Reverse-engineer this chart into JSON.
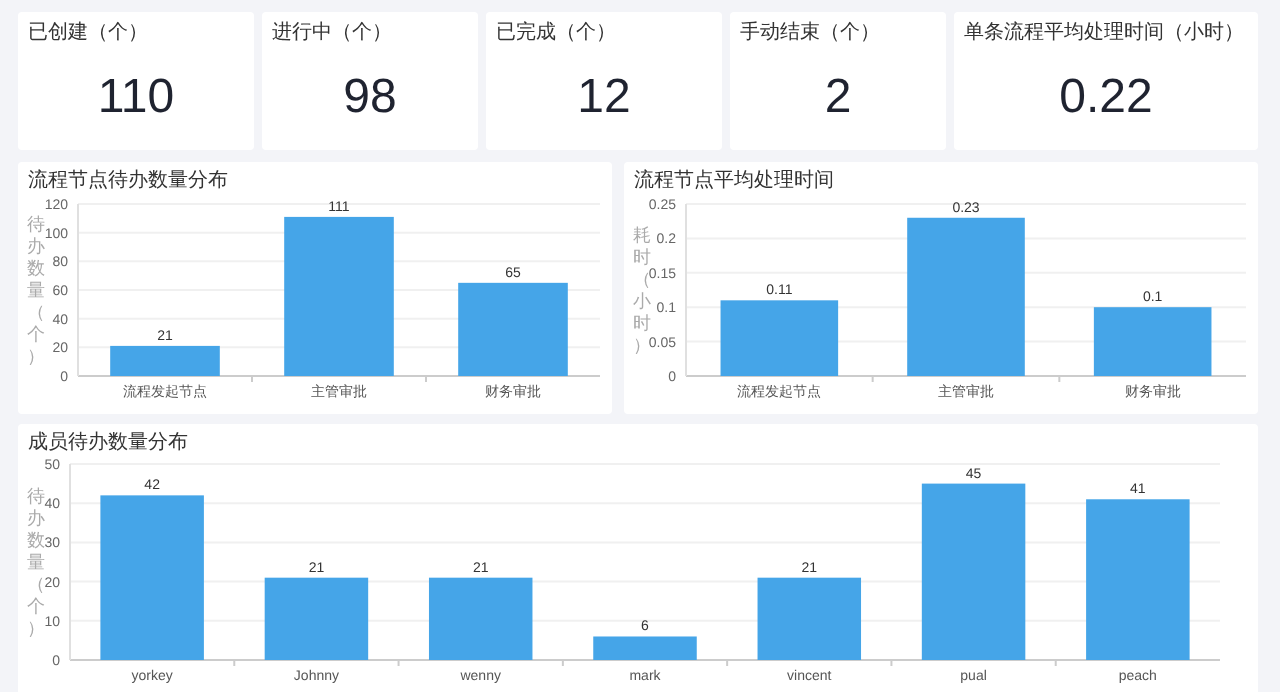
{
  "chart_data": [
    {
      "type": "other",
      "title": "已创建（个）",
      "annotations": [
        "110"
      ]
    },
    {
      "type": "other",
      "title": "进行中（个）",
      "annotations": [
        "98"
      ]
    },
    {
      "type": "other",
      "title": "已完成（个）",
      "annotations": [
        "12"
      ]
    },
    {
      "type": "other",
      "title": "手动结束（个）",
      "annotations": [
        "2"
      ]
    },
    {
      "type": "other",
      "title": "单条流程平均处理时间（小时）",
      "annotations": [
        "0.22"
      ]
    },
    {
      "type": "bar",
      "title": "流程节点待办数量分布",
      "ylabel": "待办数量（个）",
      "categories": [
        "流程发起节点",
        "主管审批",
        "财务审批"
      ],
      "values": [
        21,
        111,
        65
      ],
      "color": "#45a5e8",
      "ylim": [
        0,
        120
      ],
      "yticks": [
        0,
        20,
        40,
        60,
        80,
        100,
        120
      ],
      "grid": "y",
      "data_labels": true
    },
    {
      "type": "bar",
      "title": "流程节点平均处理时间",
      "ylabel": "耗时（小时）",
      "categories": [
        "流程发起节点",
        "主管审批",
        "财务审批"
      ],
      "values": [
        0.11,
        0.23,
        0.1
      ],
      "color": "#45a5e8",
      "ylim": [
        0,
        0.25
      ],
      "yticks": [
        0,
        0.05,
        0.1,
        0.15,
        0.2,
        0.25
      ],
      "grid": "y",
      "data_labels": true
    },
    {
      "type": "bar",
      "title": "成员待办数量分布",
      "ylabel": "待办数量（个）",
      "categories": [
        "yorkey",
        "Johnny",
        "wenny",
        "mark",
        "vincent",
        "pual",
        "peach"
      ],
      "values": [
        42,
        21,
        21,
        6,
        21,
        45,
        41
      ],
      "color": "#45a5e8",
      "ylim": [
        0,
        50
      ],
      "yticks": [
        0,
        10,
        20,
        30,
        40,
        50
      ],
      "grid": "y",
      "data_labels": true
    }
  ]
}
